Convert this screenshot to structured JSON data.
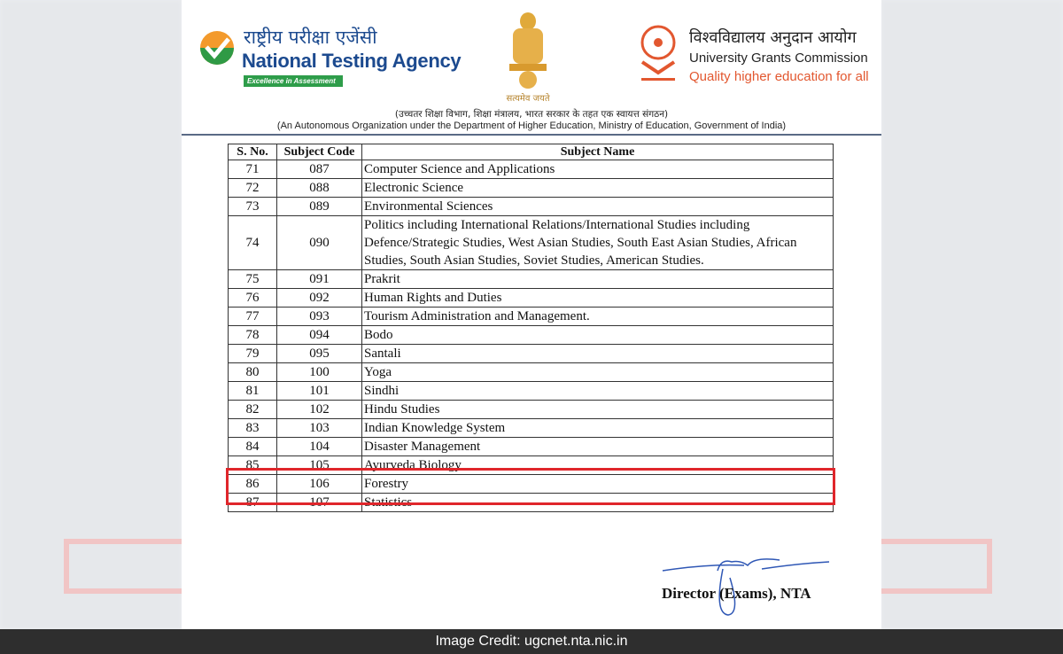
{
  "header": {
    "nta_hindi": "राष्ट्रीय परीक्षा एजेंसी",
    "nta_english": "National Testing Agency",
    "nta_tagline": "Excellence in Assessment",
    "emblem_motto": "सत्यमेव जयते",
    "ugc_hindi": "विश्वविद्यालय अनुदान आयोग",
    "ugc_english": "University Grants Commission",
    "ugc_tagline": "Quality higher education for all",
    "subtitle_hindi": "(उच्चतर शिक्षा विभाग, शिक्षा मंत्रालय, भारत सरकार के तहत एक स्वायत्त संगठन)",
    "subtitle_english": "(An Autonomous Organization under the Department of Higher Education, Ministry of Education, Government of India)"
  },
  "table": {
    "headers": [
      "S. No.",
      "Subject Code",
      "Subject Name"
    ],
    "rows": [
      [
        "71",
        "087",
        "Computer Science and Applications"
      ],
      [
        "72",
        "088",
        "Electronic Science"
      ],
      [
        "73",
        "089",
        "Environmental Sciences"
      ],
      [
        "74",
        "090",
        "Politics including International Relations/International Studies including Defence/Strategic Studies, West Asian Studies, South East Asian Studies, African Studies, South Asian Studies, Soviet Studies, American Studies."
      ],
      [
        "75",
        "091",
        "Prakrit"
      ],
      [
        "76",
        "092",
        "Human Rights and Duties"
      ],
      [
        "77",
        "093",
        "Tourism Administration and Management."
      ],
      [
        "78",
        "094",
        "Bodo"
      ],
      [
        "79",
        "095",
        "Santali"
      ],
      [
        "80",
        "100",
        "Yoga"
      ],
      [
        "81",
        "101",
        "Sindhi"
      ],
      [
        "82",
        "102",
        "Hindu Studies"
      ],
      [
        "83",
        "103",
        "Indian Knowledge System"
      ],
      [
        "84",
        "104",
        "Disaster Management"
      ],
      [
        "85",
        "105",
        "Ayurveda Biology"
      ],
      [
        "86",
        "106",
        "Forestry"
      ],
      [
        "87",
        "107",
        "Statistics"
      ]
    ],
    "highlighted_rows": [
      "86",
      "87"
    ],
    "highlight_color": "#e0262b"
  },
  "signature": {
    "designation": "Director (Exams), NTA"
  },
  "footer": {
    "credit": "Image Credit: ugcnet.nta.nic.in"
  }
}
